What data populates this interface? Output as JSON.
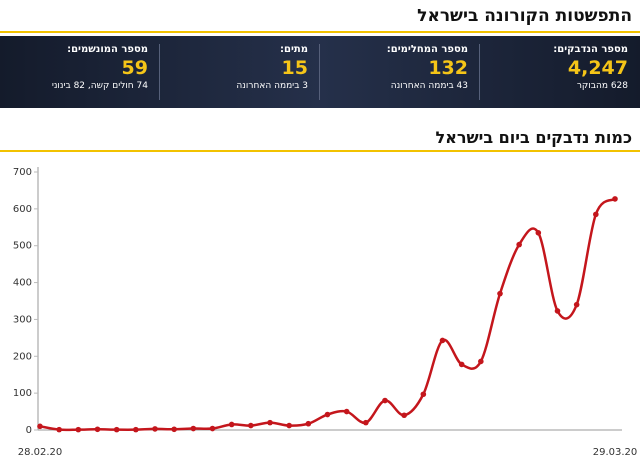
{
  "header": {
    "title": "התפשטות הקורונה בישראל"
  },
  "stats": {
    "items": [
      {
        "label": "מספר הנדבקים:",
        "value": "4,247",
        "note": "628 מהבוקר"
      },
      {
        "label": "מספר המחלימים:",
        "value": "132",
        "note": "43 ביממה האחרונה"
      },
      {
        "label": "מתים:",
        "value": "15",
        "note": "3 ביממה האחרונה"
      },
      {
        "label": "מספר המונשמים:",
        "value": "59",
        "note": "74 חולים קשה, 82 בינוני"
      }
    ]
  },
  "chart_data": {
    "type": "line",
    "title": "כמות נדבקים ביום בישראל",
    "categories": [
      "28.02.20",
      null,
      null,
      null,
      null,
      null,
      null,
      null,
      null,
      null,
      null,
      null,
      null,
      null,
      null,
      null,
      null,
      null,
      null,
      null,
      null,
      null,
      null,
      null,
      null,
      null,
      null,
      null,
      null,
      null,
      "29.03.20"
    ],
    "series": [
      {
        "name": "נדבקים",
        "color": "#c4161c",
        "values": [
          10,
          1,
          1,
          2,
          1,
          1,
          3,
          2,
          4,
          4,
          15,
          12,
          20,
          12,
          17,
          42,
          50,
          20,
          80,
          40,
          97,
          243,
          178,
          186,
          370,
          503,
          535,
          323,
          340,
          585,
          627
        ]
      }
    ],
    "ylim": [
      0,
      700
    ],
    "yticks": [
      0,
      100,
      200,
      300,
      400,
      500,
      600,
      700
    ],
    "grid": false
  }
}
